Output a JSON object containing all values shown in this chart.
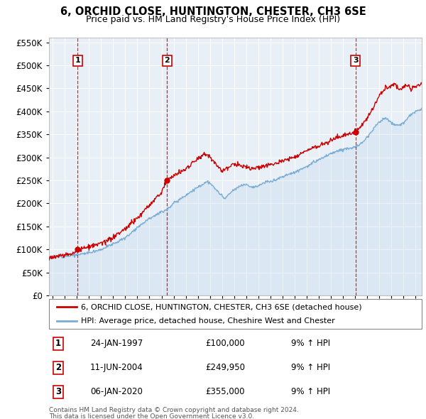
{
  "title": "6, ORCHID CLOSE, HUNTINGTON, CHESTER, CH3 6SE",
  "subtitle": "Price paid vs. HM Land Registry's House Price Index (HPI)",
  "legend_line1": "6, ORCHID CLOSE, HUNTINGTON, CHESTER, CH3 6SE (detached house)",
  "legend_line2": "HPI: Average price, detached house, Cheshire West and Chester",
  "footer1": "Contains HM Land Registry data © Crown copyright and database right 2024.",
  "footer2": "This data is licensed under the Open Government Licence v3.0.",
  "transactions": [
    {
      "num": 1,
      "date": "24-JAN-1997",
      "price": "£100,000",
      "hpi": "9% ↑ HPI",
      "year": 1997.07,
      "value": 100000
    },
    {
      "num": 2,
      "date": "11-JUN-2004",
      "price": "£249,950",
      "hpi": "9% ↑ HPI",
      "year": 2004.45,
      "value": 249950
    },
    {
      "num": 3,
      "date": "06-JAN-2020",
      "price": "£355,000",
      "hpi": "9% ↑ HPI",
      "year": 2020.03,
      "value": 355000
    }
  ],
  "red_color": "#cc0000",
  "blue_color": "#7aadd4",
  "blue_fill": "#c5daf0",
  "bg_color": "#e8eff6",
  "grid_color": "#ffffff",
  "ylim": [
    0,
    560000
  ],
  "yticks": [
    0,
    50000,
    100000,
    150000,
    200000,
    250000,
    300000,
    350000,
    400000,
    450000,
    500000,
    550000
  ],
  "xlim_start": 1994.7,
  "xlim_end": 2025.5,
  "xticks": [
    1995,
    1996,
    1997,
    1998,
    1999,
    2000,
    2001,
    2002,
    2003,
    2004,
    2005,
    2006,
    2007,
    2008,
    2009,
    2010,
    2011,
    2012,
    2013,
    2014,
    2015,
    2016,
    2017,
    2018,
    2019,
    2020,
    2021,
    2022,
    2023,
    2024,
    2025
  ]
}
